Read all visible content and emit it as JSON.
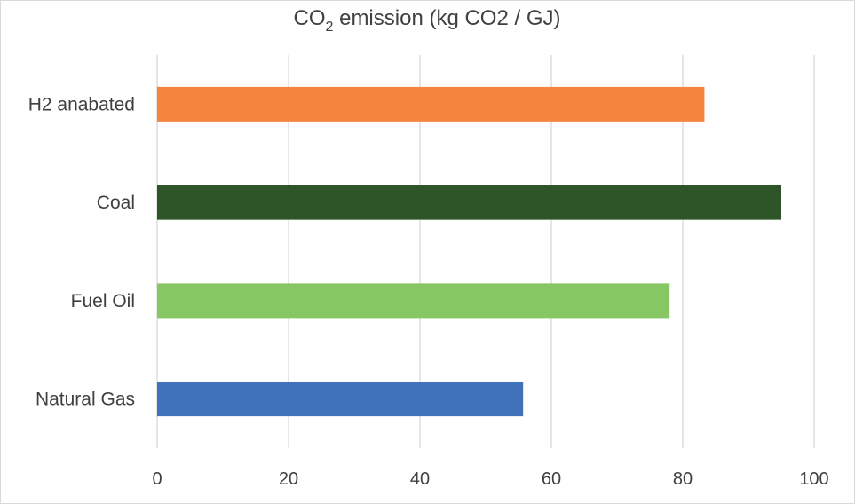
{
  "chart_data": {
    "type": "bar",
    "orientation": "horizontal",
    "title": {
      "prefix": "CO",
      "subscript": "2",
      "suffix": " emission (kg CO2 / GJ)"
    },
    "categories": [
      "H2 anabated",
      "Coal",
      "Fuel Oil",
      "Natural Gas"
    ],
    "values": [
      83.3,
      95,
      78,
      55.7
    ],
    "colors": [
      "#f4853f",
      "#2e5528",
      "#86c764",
      "#3f72bb"
    ],
    "xlim": [
      0,
      100
    ],
    "xticks": [
      "0",
      "20",
      "40",
      "60",
      "80",
      "100"
    ],
    "gridlines": "vertical",
    "legend": "none"
  }
}
